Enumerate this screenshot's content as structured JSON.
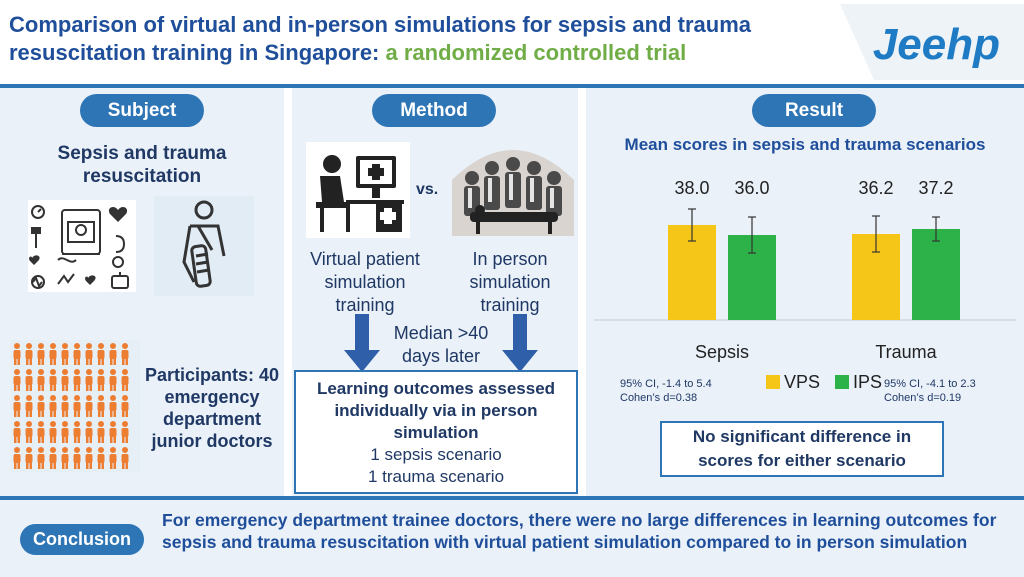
{
  "header": {
    "title_part1": "Comparison of virtual and in-person simulations for sepsis and trauma resuscitation training in Singapore:",
    "title_part2": "a randomized controlled trial",
    "logo_text": "Jeehp"
  },
  "subject": {
    "label": "Subject",
    "heading": "Sepsis and trauma resuscitation",
    "participants": "Participants: 40 emergency department junior doctors"
  },
  "method": {
    "label": "Method",
    "vs": "vs.",
    "virtual": "Virtual patient simulation training",
    "inperson": "In person simulation training",
    "median": "Median >40 days later",
    "outcome_bold": "Learning outcomes assessed individually via in person simulation",
    "outcome_line1": "1 sepsis scenario",
    "outcome_line2": "1 trauma scenario"
  },
  "result": {
    "label": "Result",
    "sepsis_ci": "95% CI, -1.4 to 5.4",
    "sepsis_d": "Cohen’s d=0.38",
    "trauma_ci": "95% CI, -4.1 to 2.3",
    "trauma_d": "Cohen’s d=0.19",
    "no_diff": "No significant difference in scores for either scenario"
  },
  "chart_data": {
    "type": "bar",
    "title": "Mean scores in sepsis and trauma scenarios",
    "categories": [
      "Sepsis",
      "Trauma"
    ],
    "series": [
      {
        "name": "VPS",
        "values": [
          38.0,
          36.2
        ],
        "labels": [
          "38.0",
          "36.2"
        ],
        "color": "#f5c518"
      },
      {
        "name": "IPS",
        "values": [
          36.0,
          37.2
        ],
        "labels": [
          "36.0",
          "37.2"
        ],
        "color": "#2db24a"
      }
    ],
    "error_bars": [
      [
        4.0,
        4.5
      ],
      [
        4.5,
        3.0
      ]
    ],
    "grid": false,
    "legend": "bottom-center"
  },
  "conclusion": {
    "label": "Conclusion",
    "text": "For emergency department trainee doctors, there were no large differences in learning outcomes for sepsis and trauma resuscitation with virtual patient simulation compared to in person simulation"
  },
  "colors": {
    "primary": "#2e75b6",
    "navy": "#1f3864",
    "green_accent": "#70ad47",
    "orange_people": "#ed7d31"
  }
}
